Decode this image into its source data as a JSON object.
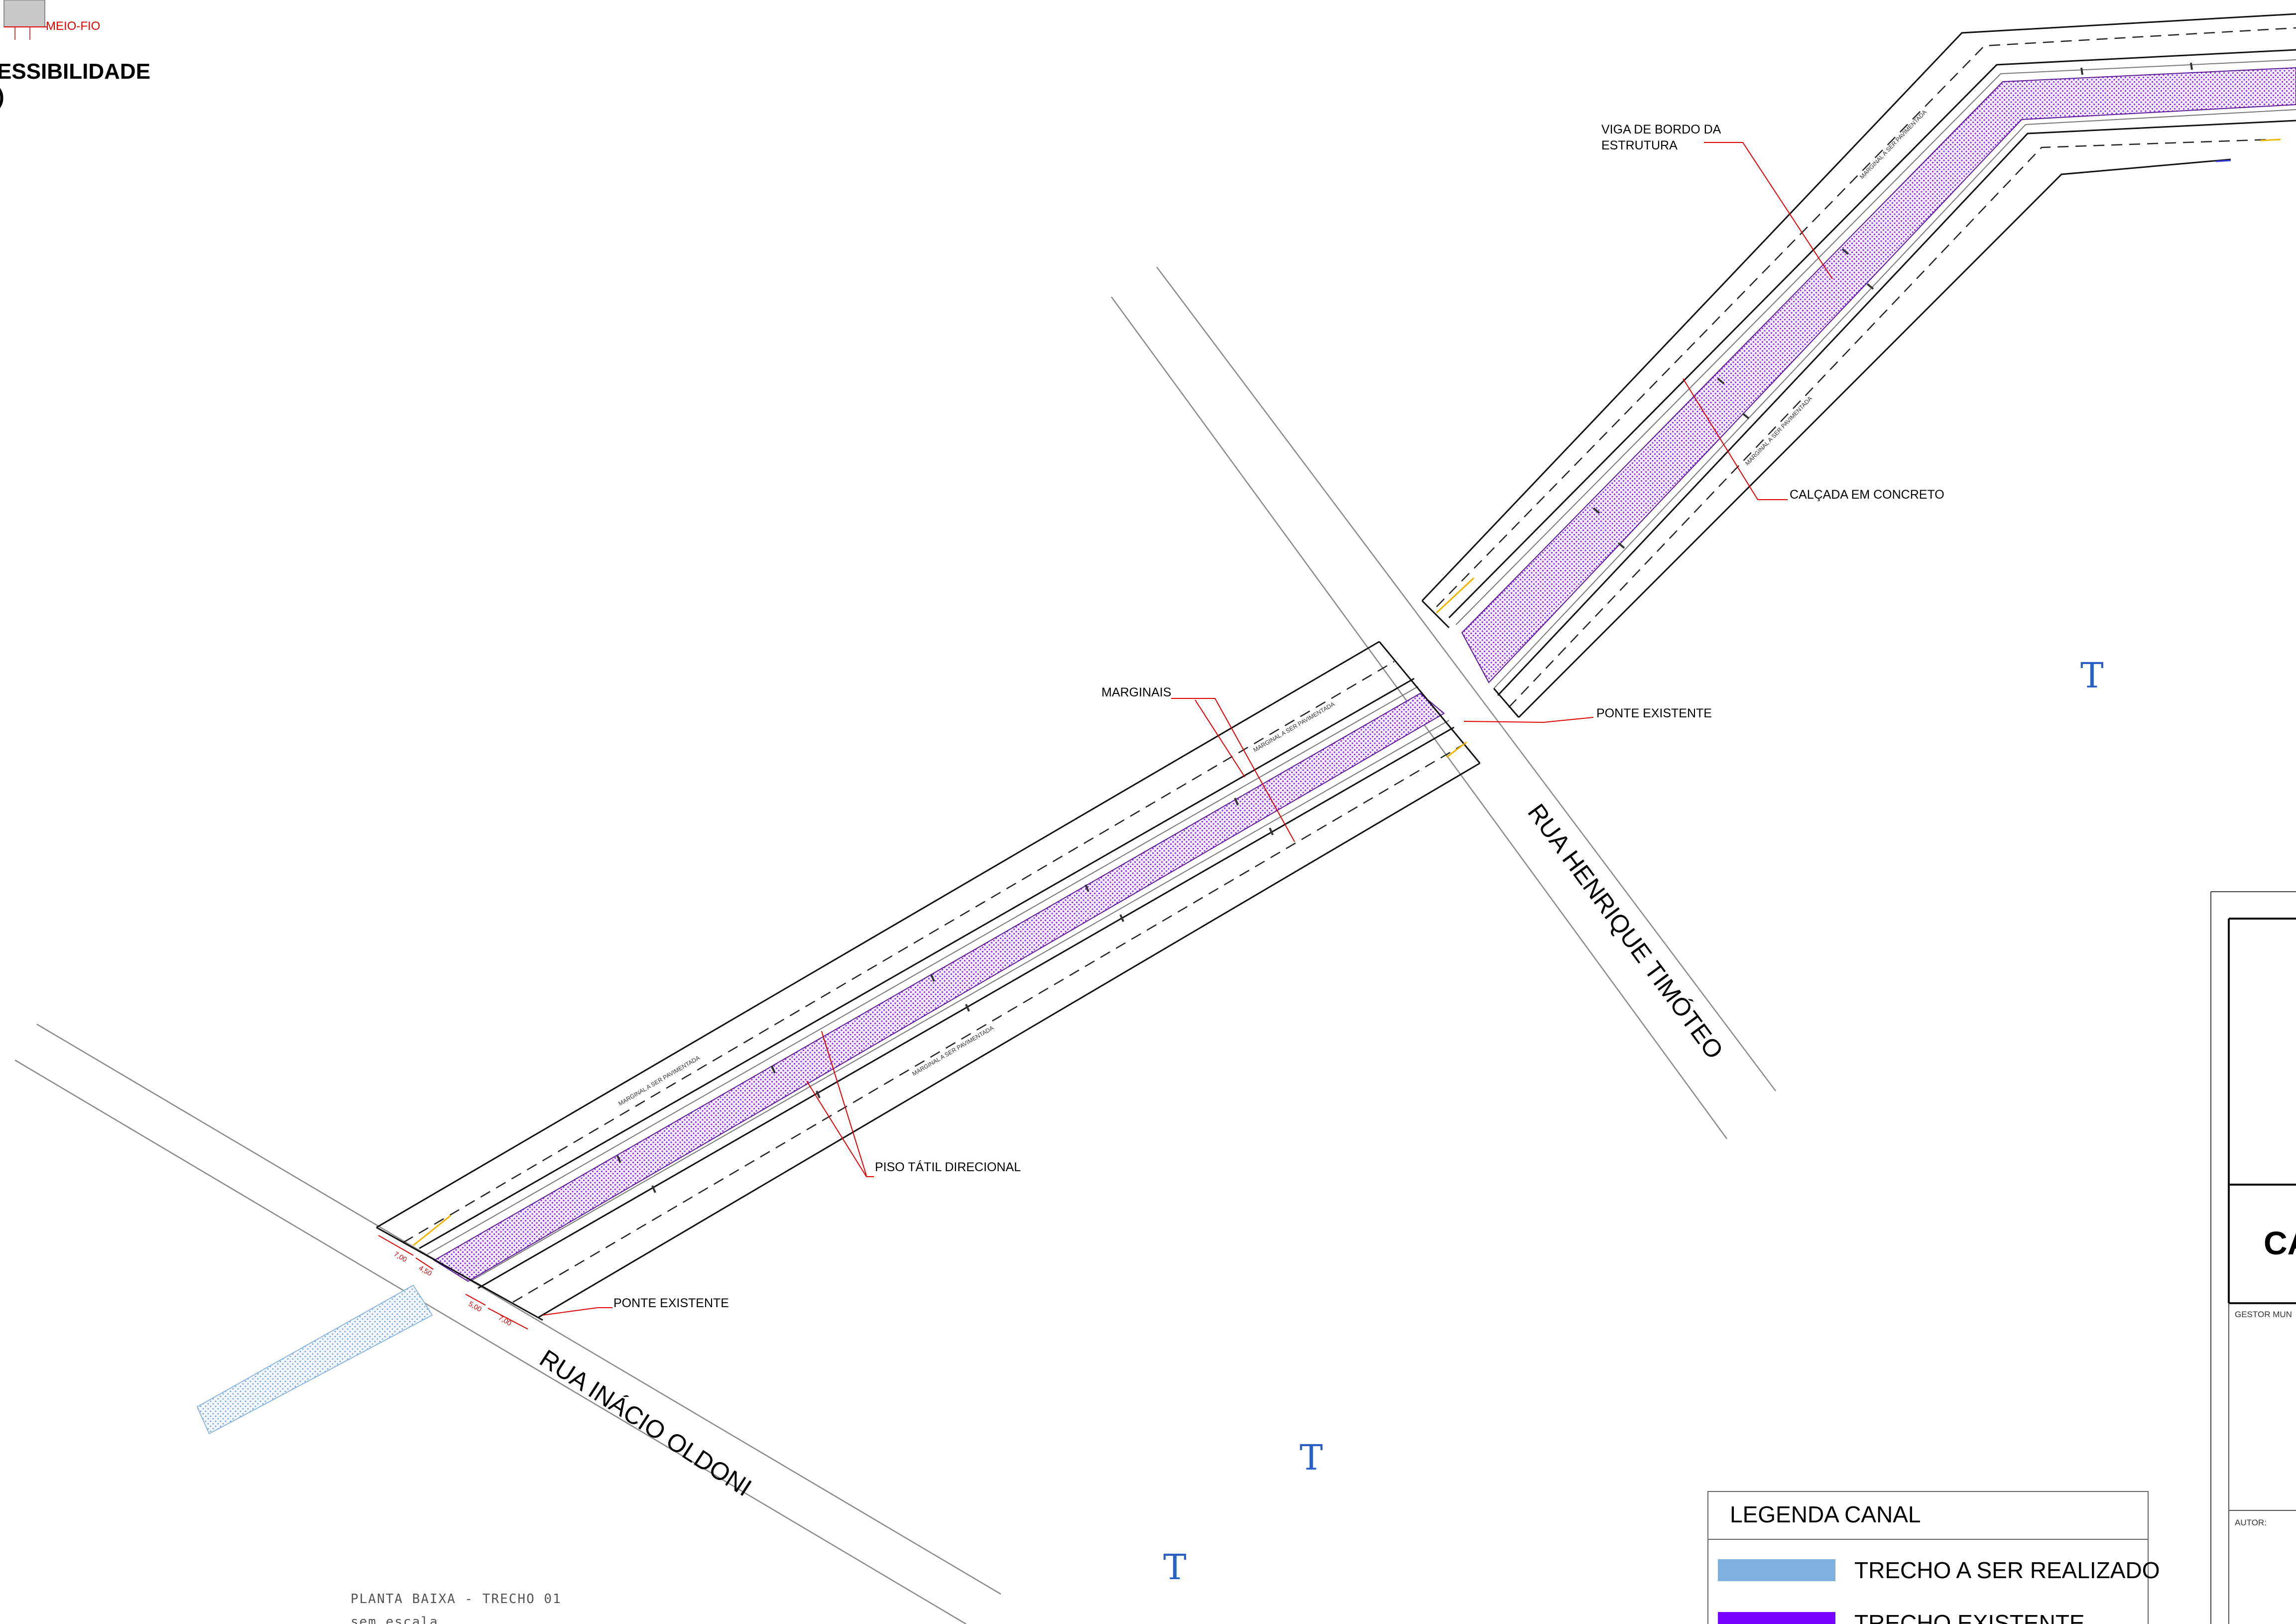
{
  "detail_top_left": {
    "meio_fio": "MEIO-FIO",
    "heading_line1": "ESSIBILIDADE",
    "heading_line2": ")"
  },
  "callouts": {
    "viga_line1": "VIGA DE BORDO DA",
    "viga_line2": "ESTRUTURA",
    "calcada": "CALÇADA EM CONCRETO",
    "marginais": "MARGINAIS",
    "ponte_existente_1": "PONTE EXISTENTE",
    "ponte_existente_2": "PONTE EXISTENTE",
    "piso_tatil": "PISO TÁTIL DIRECIONAL"
  },
  "streets": {
    "henrique": "RUA HENRIQUE TIMÓTEO",
    "inacio": "RUA INÁCIO OLDONI"
  },
  "marginal_labels": {
    "label": "MARGINAL A SER PAVIMENTADA"
  },
  "dimensions": {
    "d1": "7,00",
    "d2": "4,50",
    "d3": "5,00",
    "d4": "7,00"
  },
  "plan_caption": {
    "title": "PLANTA BAIXA - TRECHO 01",
    "scale": "sem escala"
  },
  "legend": {
    "title": "LEGENDA CANAL",
    "items": [
      {
        "label": "TRECHO A SER REALIZADO",
        "color": "#7fb0e0"
      },
      {
        "label": "TRECHO EXISTENTE",
        "color": "#7a00ff"
      }
    ]
  },
  "title_block": {
    "partial_title": "CA",
    "gestor": "GESTOR MUN",
    "autor": "AUTOR:"
  },
  "symbols": {
    "marker": "T"
  },
  "colors": {
    "hatch": "#8a2be2",
    "red": "#e00000",
    "blue_hatch": "#7fb0e0",
    "yellow": "#f0b400"
  }
}
